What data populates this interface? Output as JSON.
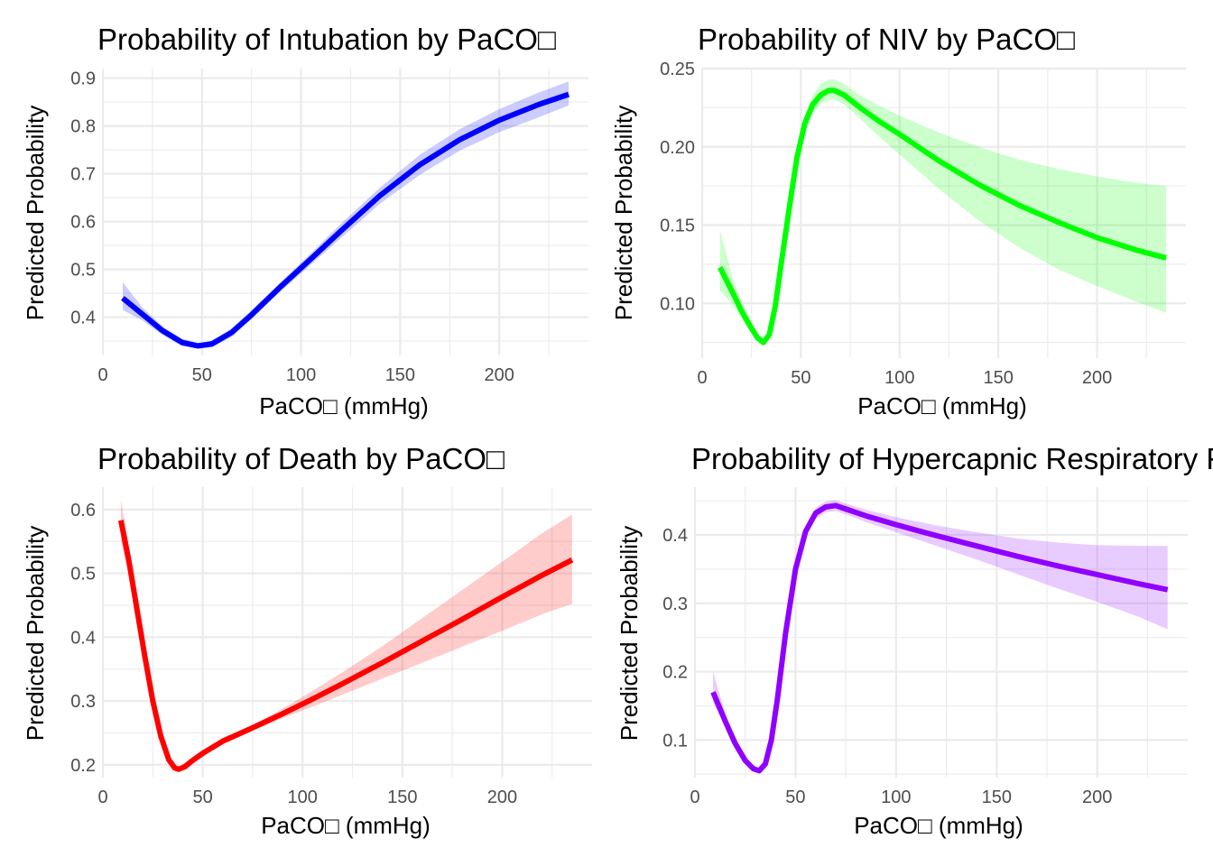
{
  "chart_data": [
    {
      "type": "line",
      "title": "Probability of Intubation by PaCO□",
      "xlabel": "PaCO□ (mmHg)",
      "ylabel": "Predicted Probability",
      "xlim": [
        0,
        245
      ],
      "ylim": [
        0.32,
        0.92
      ],
      "xticks": [
        0,
        50,
        100,
        150,
        200
      ],
      "xtick_labels": [
        "0",
        "50",
        "100",
        "150",
        "200"
      ],
      "yticks": [
        0.4,
        0.5,
        0.6,
        0.7,
        0.8,
        0.9
      ],
      "ytick_labels": [
        "0.4",
        "0.5",
        "0.6",
        "0.7",
        "0.8",
        "0.9"
      ],
      "grid": true,
      "color": "#0000ff",
      "series": [
        {
          "x": [
            10,
            20,
            30,
            40,
            48,
            55,
            65,
            75,
            90,
            105,
            120,
            140,
            160,
            180,
            200,
            220,
            235
          ],
          "y": [
            0.44,
            0.406,
            0.372,
            0.347,
            0.34,
            0.344,
            0.368,
            0.405,
            0.465,
            0.522,
            0.58,
            0.655,
            0.719,
            0.771,
            0.812,
            0.845,
            0.866
          ],
          "lower": [
            0.415,
            0.393,
            0.363,
            0.339,
            0.334,
            0.337,
            0.359,
            0.396,
            0.455,
            0.51,
            0.565,
            0.638,
            0.698,
            0.748,
            0.787,
            0.818,
            0.843
          ],
          "upper": [
            0.473,
            0.42,
            0.381,
            0.355,
            0.346,
            0.351,
            0.377,
            0.414,
            0.475,
            0.534,
            0.595,
            0.672,
            0.74,
            0.793,
            0.835,
            0.87,
            0.893
          ]
        }
      ]
    },
    {
      "type": "line",
      "title": "Probability of NIV by PaCO□",
      "xlabel": "PaCO□ (mmHg)",
      "ylabel": "Predicted Probability",
      "xlim": [
        0,
        245
      ],
      "ylim": [
        0.065,
        0.25
      ],
      "xticks": [
        0,
        50,
        100,
        150,
        200
      ],
      "xtick_labels": [
        "0",
        "50",
        "100",
        "150",
        "200"
      ],
      "yticks": [
        0.1,
        0.15,
        0.2,
        0.25
      ],
      "ytick_labels": [
        "0.10",
        "0.15",
        "0.20",
        "0.25"
      ],
      "grid": true,
      "color": "#00ff00",
      "series": [
        {
          "x": [
            9,
            15,
            20,
            25,
            28,
            31,
            34,
            37,
            40,
            44,
            48,
            52,
            56,
            60,
            64,
            67,
            72,
            80,
            90,
            100,
            120,
            140,
            160,
            180,
            200,
            220,
            235
          ],
          "y": [
            0.123,
            0.108,
            0.095,
            0.084,
            0.078,
            0.075,
            0.08,
            0.098,
            0.125,
            0.16,
            0.193,
            0.215,
            0.227,
            0.233,
            0.236,
            0.236,
            0.233,
            0.225,
            0.216,
            0.208,
            0.191,
            0.176,
            0.163,
            0.152,
            0.142,
            0.134,
            0.129
          ],
          "lower": [
            0.108,
            0.1,
            0.09,
            0.081,
            0.076,
            0.073,
            0.078,
            0.095,
            0.121,
            0.155,
            0.187,
            0.209,
            0.221,
            0.227,
            0.23,
            0.23,
            0.227,
            0.218,
            0.206,
            0.195,
            0.173,
            0.153,
            0.136,
            0.122,
            0.111,
            0.101,
            0.094
          ],
          "upper": [
            0.147,
            0.118,
            0.101,
            0.088,
            0.081,
            0.078,
            0.083,
            0.101,
            0.129,
            0.165,
            0.199,
            0.221,
            0.233,
            0.24,
            0.243,
            0.243,
            0.24,
            0.233,
            0.226,
            0.22,
            0.209,
            0.2,
            0.192,
            0.186,
            0.181,
            0.177,
            0.175
          ]
        }
      ]
    },
    {
      "type": "line",
      "title": "Probability of Death by PaCO□",
      "xlabel": "PaCO□ (mmHg)",
      "ylabel": "Predicted Probability",
      "xlim": [
        0,
        245
      ],
      "ylim": [
        0.18,
        0.635
      ],
      "xticks": [
        0,
        50,
        100,
        150,
        200
      ],
      "xtick_labels": [
        "0",
        "50",
        "100",
        "150",
        "200"
      ],
      "yticks": [
        0.2,
        0.3,
        0.4,
        0.5,
        0.6
      ],
      "ytick_labels": [
        "0.2",
        "0.3",
        "0.4",
        "0.5",
        "0.6"
      ],
      "grid": true,
      "color": "#ff0000",
      "series": [
        {
          "x": [
            9,
            13,
            17,
            21,
            25,
            29,
            33,
            36,
            38,
            41,
            45,
            50,
            60,
            75,
            90,
            105,
            120,
            140,
            160,
            180,
            200,
            220,
            235
          ],
          "y": [
            0.583,
            0.52,
            0.445,
            0.37,
            0.3,
            0.245,
            0.208,
            0.195,
            0.193,
            0.197,
            0.207,
            0.218,
            0.237,
            0.258,
            0.28,
            0.303,
            0.327,
            0.36,
            0.394,
            0.428,
            0.463,
            0.497,
            0.521
          ],
          "lower": [
            0.55,
            0.497,
            0.43,
            0.362,
            0.296,
            0.243,
            0.207,
            0.194,
            0.192,
            0.196,
            0.206,
            0.217,
            0.235,
            0.254,
            0.273,
            0.291,
            0.31,
            0.335,
            0.36,
            0.385,
            0.41,
            0.436,
            0.452
          ],
          "upper": [
            0.615,
            0.543,
            0.46,
            0.378,
            0.304,
            0.247,
            0.209,
            0.196,
            0.194,
            0.198,
            0.208,
            0.219,
            0.239,
            0.262,
            0.288,
            0.316,
            0.345,
            0.386,
            0.43,
            0.474,
            0.518,
            0.563,
            0.592
          ]
        }
      ]
    },
    {
      "type": "line",
      "title": "Probability of Hypercapnic Respiratory Failure by PaCO□",
      "xlabel": "PaCO□ (mmHg)",
      "ylabel": "Predicted Probability",
      "xlim": [
        0,
        245
      ],
      "ylim": [
        0.045,
        0.47
      ],
      "xticks": [
        0,
        50,
        100,
        150,
        200
      ],
      "xtick_labels": [
        "0",
        "50",
        "100",
        "150",
        "200"
      ],
      "yticks": [
        0.1,
        0.2,
        0.3,
        0.4
      ],
      "ytick_labels": [
        "0.1",
        "0.2",
        "0.3",
        "0.4"
      ],
      "grid": true,
      "color": "#8f00ff",
      "series": [
        {
          "x": [
            9,
            15,
            20,
            25,
            29,
            32,
            35,
            38,
            41,
            45,
            50,
            55,
            60,
            65,
            70,
            75,
            85,
            100,
            120,
            140,
            160,
            180,
            200,
            220,
            235
          ],
          "y": [
            0.17,
            0.128,
            0.095,
            0.07,
            0.058,
            0.055,
            0.065,
            0.1,
            0.16,
            0.255,
            0.35,
            0.405,
            0.432,
            0.441,
            0.443,
            0.438,
            0.428,
            0.415,
            0.399,
            0.384,
            0.369,
            0.355,
            0.342,
            0.329,
            0.32
          ],
          "lower": [
            0.155,
            0.12,
            0.09,
            0.067,
            0.056,
            0.053,
            0.063,
            0.097,
            0.155,
            0.248,
            0.342,
            0.397,
            0.424,
            0.433,
            0.435,
            0.43,
            0.419,
            0.404,
            0.384,
            0.364,
            0.343,
            0.322,
            0.302,
            0.281,
            0.262
          ],
          "upper": [
            0.2,
            0.14,
            0.1,
            0.073,
            0.06,
            0.057,
            0.067,
            0.103,
            0.165,
            0.262,
            0.358,
            0.413,
            0.44,
            0.449,
            0.451,
            0.446,
            0.437,
            0.426,
            0.414,
            0.404,
            0.395,
            0.389,
            0.385,
            0.384,
            0.384
          ]
        }
      ]
    }
  ]
}
